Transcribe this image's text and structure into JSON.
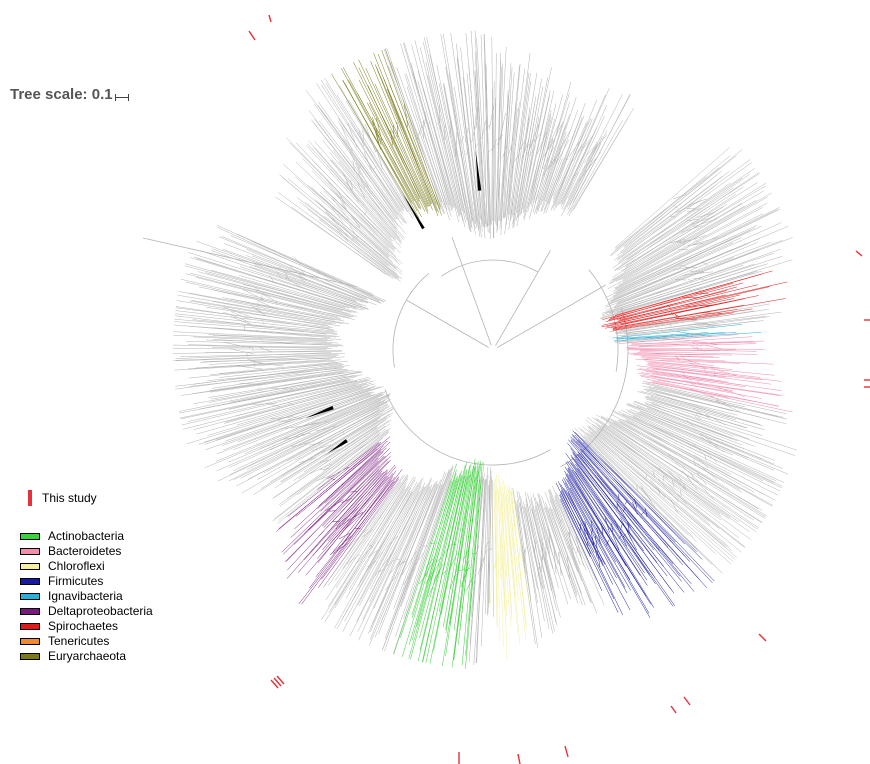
{
  "tree_scale": {
    "label": "Tree scale: 0.1"
  },
  "study_legend": {
    "label": "This study",
    "color": "#e8303a"
  },
  "legend": {
    "items": [
      {
        "label": "Actinobacteria",
        "color": "#3ad13a"
      },
      {
        "label": "Bacteroidetes",
        "color": "#f28cb0"
      },
      {
        "label": "Chloroflexi",
        "color": "#f5f0a0"
      },
      {
        "label": "Firmicutes",
        "color": "#1a1aa0"
      },
      {
        "label": "Ignavibacteria",
        "color": "#2ab0d8"
      },
      {
        "label": "Deltaproteobacteria",
        "color": "#7a1a80"
      },
      {
        "label": "Spirochaetes",
        "color": "#e01a1a"
      },
      {
        "label": "Tenericutes",
        "color": "#f08a30"
      },
      {
        "label": "Euryarchaeota",
        "color": "#7a7a1a"
      }
    ]
  },
  "tree_colors": {
    "default": "#b3b3b3",
    "dark": "#000000"
  }
}
